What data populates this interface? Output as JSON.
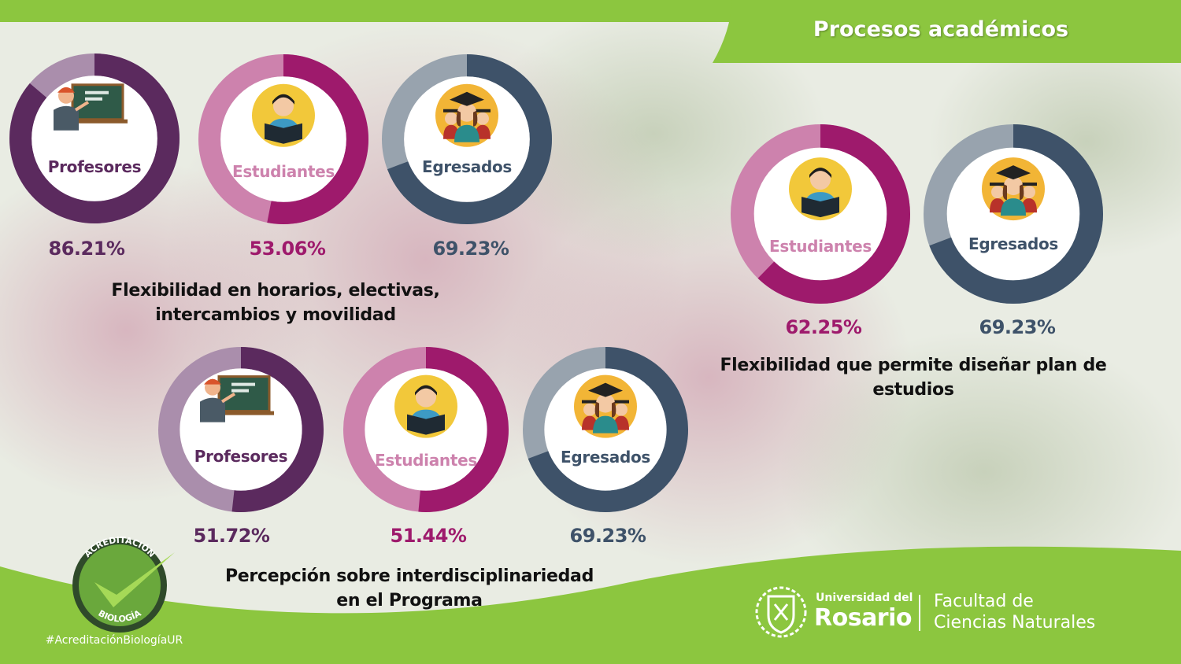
{
  "header": {
    "title": "Procesos académicos"
  },
  "colors": {
    "profesores": "#5b2a5e",
    "profesores_light": "#aa8eac",
    "estudiantes": "#9e1a6c",
    "estudiantes_light": "#cd82ad",
    "egresados": "#3e5269",
    "egresados_light": "#98a3ae",
    "green": "#8cc63f"
  },
  "icons": {
    "profesores": "teacher-at-chalkboard-icon",
    "estudiantes": "student-reading-book-icon",
    "egresados": "graduates-with-caps-icon"
  },
  "chart_data": [
    {
      "type": "donut",
      "title": "Flexibilidad en horarios, electivas,\nintercambios y movilidad",
      "title_lines": [
        "Flexibilidad en horarios, electivas,",
        "intercambios y movilidad"
      ],
      "categories": [
        "Profesores",
        "Estudiantes",
        "Egresados"
      ],
      "values": [
        86.21,
        53.06,
        69.23
      ],
      "labels": [
        "86.21%",
        "53.06%",
        "69.23%"
      ]
    },
    {
      "type": "donut",
      "title": "Percepción sobre interdisciplinariedad\nen el Programa",
      "title_lines": [
        "Percepción sobre interdisciplinariedad",
        "en el Programa"
      ],
      "categories": [
        "Profesores",
        "Estudiantes",
        "Egresados"
      ],
      "values": [
        51.72,
        51.44,
        69.23
      ],
      "labels": [
        "51.72%",
        "51.44%",
        "69.23%"
      ]
    },
    {
      "type": "donut",
      "title": "Flexibilidad que permite diseñar plan de\nestudios",
      "title_lines": [
        "Flexibilidad que permite diseñar plan de",
        "estudios"
      ],
      "categories": [
        "Estudiantes",
        "Egresados"
      ],
      "values": [
        62.25,
        69.23
      ],
      "labels": [
        "62.25%",
        "69.23%"
      ]
    }
  ],
  "footer": {
    "badge_top": "ACREDITACIÓN",
    "badge_bottom": "BIOLOGÍA",
    "hashtag": "#AcreditaciónBiologíaUR",
    "university_small": "Universidad del",
    "university_big": "Rosario",
    "faculty_line1": "Facultad de",
    "faculty_line2": "Ciencias Naturales"
  }
}
